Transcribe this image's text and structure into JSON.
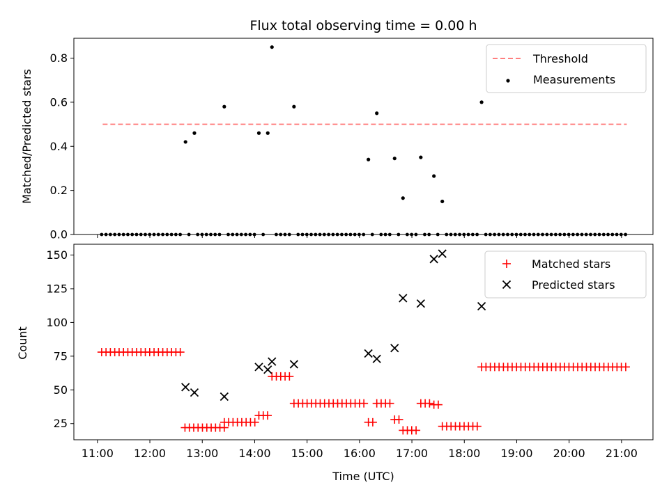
{
  "chart_data": [
    {
      "type": "scatter",
      "title": "Flux total observing time = 0.00 h",
      "xlabel": "",
      "ylabel": "Matched/Predicted stars",
      "ylim": [
        0,
        0.89
      ],
      "yticks": [
        0.0,
        0.2,
        0.4,
        0.6,
        0.8
      ],
      "ytick_labels": [
        "0.0",
        "0.2",
        "0.4",
        "0.6",
        "0.8"
      ],
      "xlim": [
        10.55,
        21.6
      ],
      "xticks": [
        11,
        12,
        13,
        14,
        15,
        16,
        17,
        18,
        19,
        20,
        21
      ],
      "xtick_labels": [
        "",
        "",
        "",
        "",
        "",
        "",
        "",
        "",
        "",
        "",
        ""
      ],
      "legend_position": "top-right",
      "threshold": {
        "name": "Threshold",
        "value": 0.5,
        "x_range": [
          11.1,
          21.1
        ],
        "color": "#ff7f7f"
      },
      "series": [
        {
          "name": "Measurements",
          "color": "#000000",
          "marker": "dot",
          "x": [
            12.68,
            12.85,
            13.42,
            14.08,
            14.25,
            14.33,
            14.75,
            16.17,
            16.33,
            16.67,
            16.83,
            17.17,
            17.42,
            17.58,
            18.33
          ],
          "y": [
            0.42,
            0.46,
            0.58,
            0.46,
            0.46,
            0.85,
            0.58,
            0.34,
            0.55,
            0.345,
            0.165,
            0.35,
            0.265,
            0.15,
            0.6
          ]
        }
      ],
      "zero_baseline": {
        "x_start": 11.08,
        "x_step": 0.0833,
        "count": 121,
        "y": 0.0,
        "except_x": [
          12.68,
          12.85,
          13.42,
          14.08,
          14.25,
          14.33,
          14.75,
          16.17,
          16.33,
          16.67,
          16.83,
          17.17,
          17.42,
          17.58,
          18.33
        ]
      }
    },
    {
      "type": "scatter",
      "title": "",
      "xlabel": "Time (UTC)",
      "ylabel": "Count",
      "ylim": [
        13,
        158
      ],
      "yticks": [
        25,
        50,
        75,
        100,
        125,
        150
      ],
      "ytick_labels": [
        "25",
        "50",
        "75",
        "100",
        "125",
        "150"
      ],
      "xlim": [
        10.55,
        21.6
      ],
      "xticks": [
        11,
        12,
        13,
        14,
        15,
        16,
        17,
        18,
        19,
        20,
        21
      ],
      "xtick_labels": [
        "11:00",
        "12:00",
        "13:00",
        "14:00",
        "15:00",
        "16:00",
        "17:00",
        "18:00",
        "19:00",
        "20:00",
        "21:00"
      ],
      "legend_position": "top-right",
      "matched_segments": [
        {
          "x_start": 11.08,
          "x_end": 12.58,
          "y": 78
        },
        {
          "x_start": 12.67,
          "x_end": 13.42,
          "y": 22
        },
        {
          "x_start": 13.42,
          "x_end": 14.0,
          "y": 26
        },
        {
          "x_start": 14.08,
          "x_end": 14.25,
          "y": 31
        },
        {
          "x_start": 14.33,
          "x_end": 14.67,
          "y": 60
        },
        {
          "x_start": 14.75,
          "x_end": 16.08,
          "y": 40
        },
        {
          "x_start": 16.17,
          "x_end": 16.25,
          "y": 26
        },
        {
          "x_start": 16.33,
          "x_end": 16.58,
          "y": 40
        },
        {
          "x_start": 16.67,
          "x_end": 16.75,
          "y": 28
        },
        {
          "x_start": 16.83,
          "x_end": 17.08,
          "y": 20
        },
        {
          "x_start": 17.17,
          "x_end": 17.33,
          "y": 40
        },
        {
          "x_start": 17.42,
          "x_end": 17.5,
          "y": 39
        },
        {
          "x_start": 17.58,
          "x_end": 18.25,
          "y": 23
        },
        {
          "x_start": 18.33,
          "x_end": 21.08,
          "y": 67
        }
      ],
      "series": [
        {
          "name": "Matched stars",
          "color": "#ff0000",
          "marker": "plus"
        },
        {
          "name": "Predicted stars",
          "color": "#000000",
          "marker": "x",
          "x": [
            12.68,
            12.85,
            13.42,
            14.08,
            14.25,
            14.33,
            14.75,
            16.17,
            16.33,
            16.67,
            16.83,
            17.17,
            17.42,
            17.58,
            18.33
          ],
          "y": [
            52,
            48,
            45,
            67,
            65,
            71,
            69,
            77,
            73,
            81,
            118,
            114,
            147,
            151,
            112
          ]
        }
      ]
    }
  ]
}
